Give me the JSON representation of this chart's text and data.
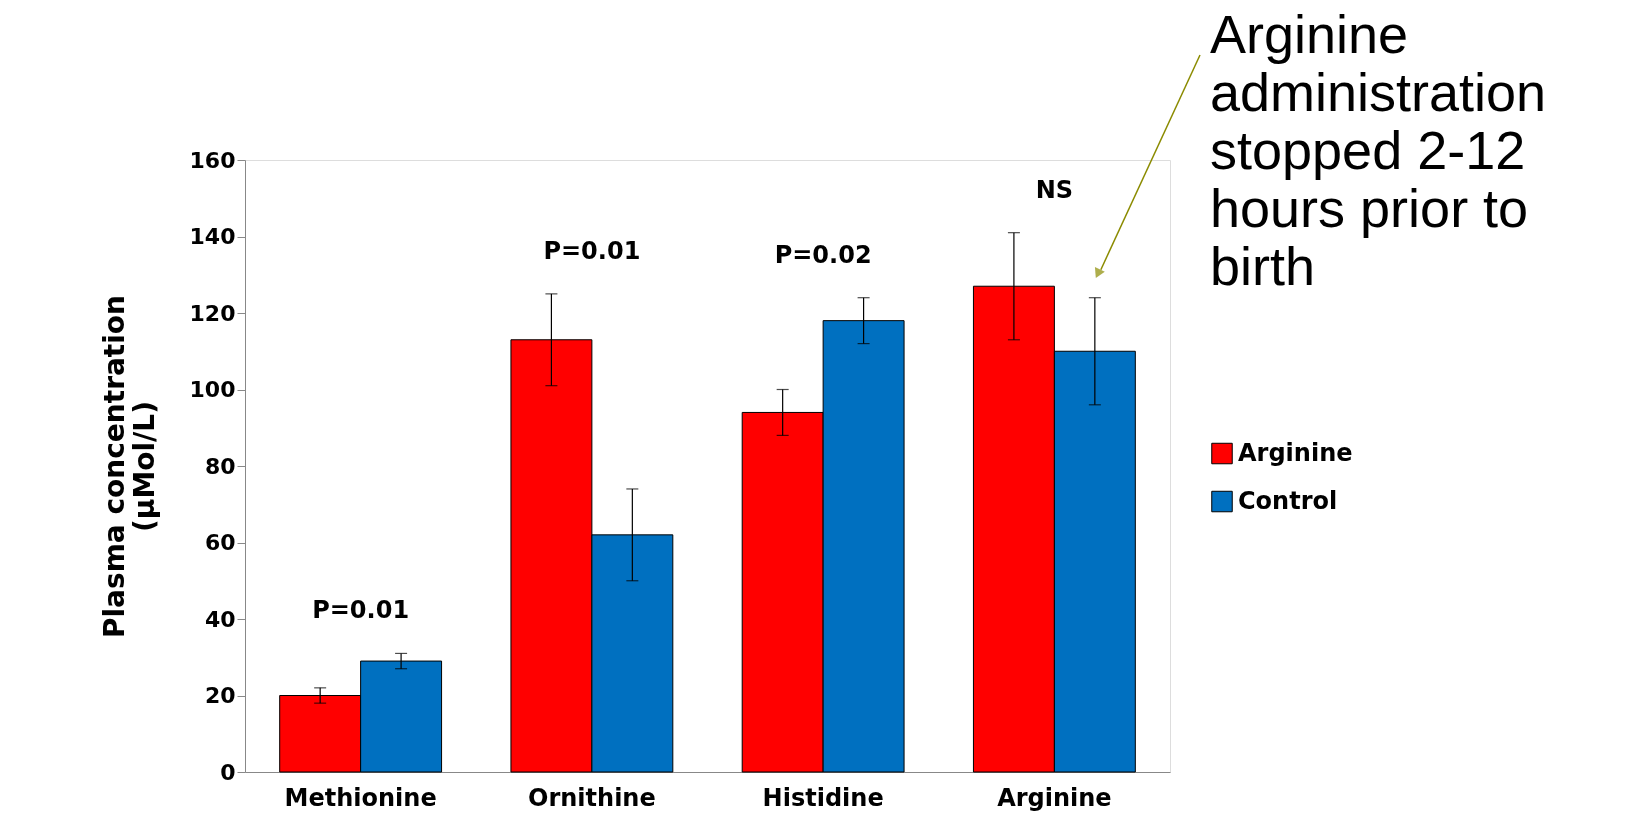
{
  "chart_data": {
    "type": "bar",
    "ylabel": "Plasma concentration\n(µMol/L)",
    "categories": [
      "Methionine",
      "Ornithine",
      "Histidine",
      "Arginine"
    ],
    "series": [
      {
        "name": "Arginine",
        "color": "#ff0000",
        "values": [
          20,
          113,
          94,
          127
        ],
        "errors": [
          2,
          12,
          6,
          14
        ]
      },
      {
        "name": "Control",
        "color": "#0070c0",
        "values": [
          29,
          62,
          118,
          110
        ],
        "errors": [
          2,
          12,
          6,
          14
        ]
      }
    ],
    "ylim": [
      0,
      160
    ],
    "yticks": [
      0,
      20,
      40,
      60,
      80,
      100,
      120,
      140,
      160
    ],
    "grid": false,
    "legend": "right",
    "annotations": [
      "P=0.01",
      "P=0.01",
      "P=0.02",
      "NS",
      "Arginine administration stopped 2-12 hours prior to birth"
    ]
  }
}
